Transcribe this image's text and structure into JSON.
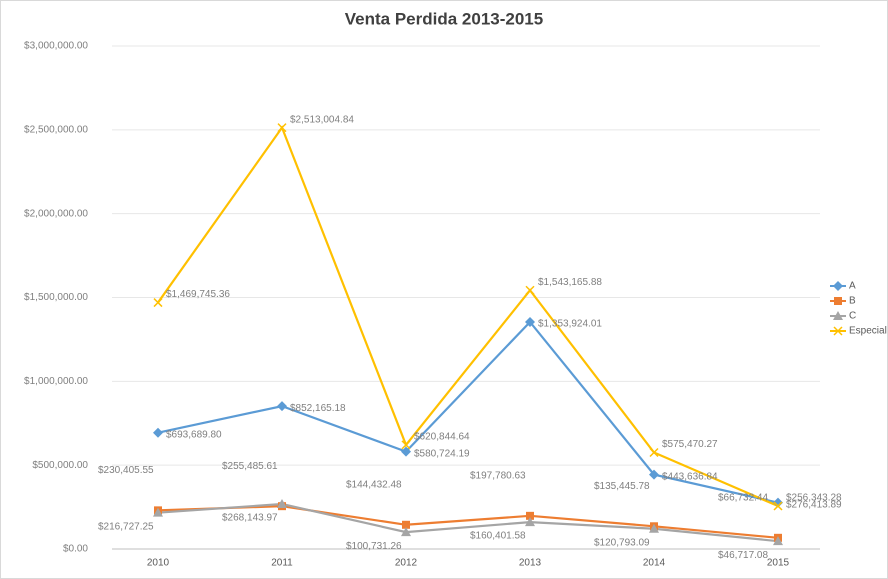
{
  "chart_data": {
    "type": "line",
    "title": "Venta Perdida 2013-2015",
    "categories": [
      "2010",
      "2011",
      "2012",
      "2013",
      "2014",
      "2015"
    ],
    "series": [
      {
        "name": "A",
        "color": "#5b9bd5",
        "values": [
          693689.8,
          852165.18,
          580724.19,
          1353924.01,
          443636.84,
          276413.89
        ],
        "value_labels": [
          "$693,689.80",
          "$852,165.18",
          "$580,724.19",
          "$1,353,924.01",
          "$443,636.84",
          "$276,413.89"
        ]
      },
      {
        "name": "B",
        "color": "#ed7d31",
        "values": [
          230405.55,
          255485.61,
          144432.48,
          197780.63,
          135445.78,
          66732.44
        ],
        "value_labels": [
          "$230,405.55",
          "$255,485.61",
          "$144,432.48",
          "$197,780.63",
          "$135,445.78",
          "$66,732.44"
        ]
      },
      {
        "name": "C",
        "color": "#a5a5a5",
        "values": [
          216727.25,
          268143.97,
          100731.26,
          160401.58,
          120793.09,
          46717.08
        ],
        "value_labels": [
          "$216,727.25",
          "$268,143.97",
          "$100,731.26",
          "$160,401.58",
          "$120,793.09",
          "$46,717.08"
        ]
      },
      {
        "name": "Especial",
        "color": "#ffc000",
        "values": [
          1469745.36,
          2513004.84,
          620844.64,
          1543165.88,
          575470.27,
          256343.28
        ],
        "value_labels": [
          "$1,469,745.36",
          "$2,513,004.84",
          "$620,844.64",
          "$1,543,165.88",
          "$575,470.27",
          "$256,343.28"
        ]
      }
    ],
    "ylim": [
      0,
      3000000
    ],
    "yticks": [
      {
        "value": 0,
        "label": "$0.00"
      },
      {
        "value": 500000,
        "label": "$500,000.00"
      },
      {
        "value": 1000000,
        "label": "$1,000,000.00"
      },
      {
        "value": 1500000,
        "label": "$1,500,000.00"
      },
      {
        "value": 2000000,
        "label": "$2,000,000.00"
      },
      {
        "value": 2500000,
        "label": "$2,500,000.00"
      },
      {
        "value": 3000000,
        "label": "$3,000,000.00"
      }
    ],
    "grid": true,
    "legend": "right"
  }
}
